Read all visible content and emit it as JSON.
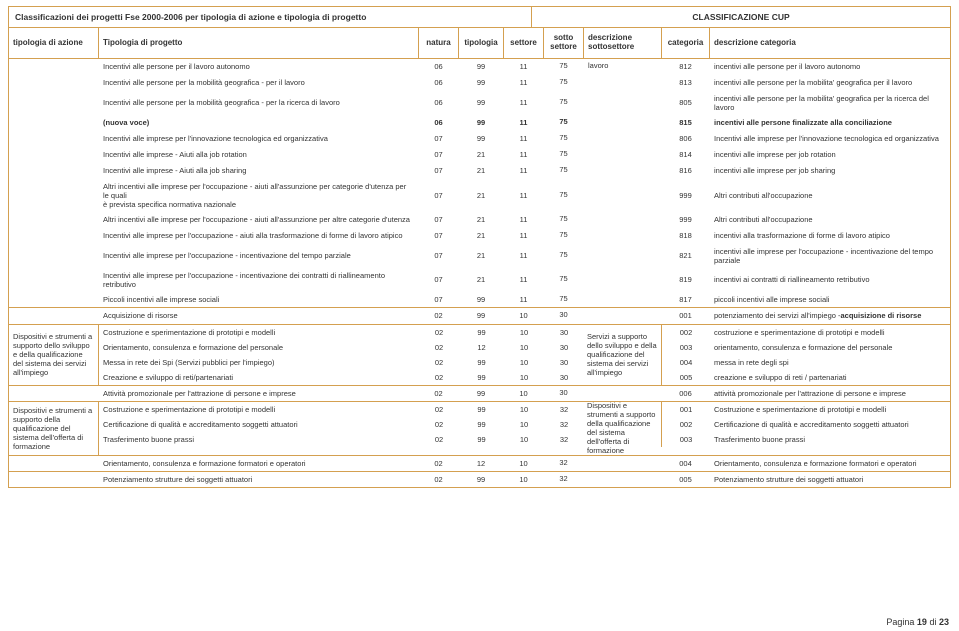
{
  "title_left": "Classificazioni dei progetti Fse 2000-2006 per tipologia di azione e tipologia di progetto",
  "title_right": "CLASSIFICAZIONE CUP",
  "headers": {
    "tip_az": "tipologia di azione",
    "tip_pr": "Tipologia di progetto",
    "natura": "natura",
    "tipologia": "tipologia",
    "settore": "settore",
    "sotto_settore": "sotto settore",
    "desc_sotto": "descrizione sottosettore",
    "categoria": "categoria",
    "desc_cat": "descrizione categoria"
  },
  "rows": [
    {
      "tip_pr": "Incentivi alle persone per il lavoro autonomo",
      "nat": "06",
      "tipol": "99",
      "set": "11",
      "sset": "75",
      "desc": "lavoro",
      "desc_top": true,
      "cat": "812",
      "dcat": "incentivi alle persone per il lavoro autonomo"
    },
    {
      "tip_pr": "Incentivi alle persone per la mobilità geografica - per il lavoro",
      "nat": "06",
      "tipol": "99",
      "set": "11",
      "sset": "75",
      "cat": "813",
      "dcat": "incentivi alle persone per la mobilita' geografica per il lavoro"
    },
    {
      "tip_pr": "Incentivi alle persone per la mobilità geografica - per la ricerca di lavoro",
      "nat": "06",
      "tipol": "99",
      "set": "11",
      "sset": "75",
      "cat": "805",
      "dcat": "incentivi alle persone per la mobilita' geografica per la ricerca del lavoro"
    },
    {
      "tip_pr": "(nuova voce)",
      "nat": "06",
      "tipol": "99",
      "set": "11",
      "sset": "75",
      "cat": "815",
      "dcat": "incentivi alle persone finalizzate alla conciliazione",
      "bold": true
    },
    {
      "tip_pr": "Incentivi alle imprese per l'innovazione tecnologica ed organizzativa",
      "nat": "07",
      "tipol": "99",
      "set": "11",
      "sset": "75",
      "cat": "806",
      "dcat": "Incentivi alle imprese per l'innovazione tecnologica ed organizzativa"
    },
    {
      "tip_pr": "Incentivi alle imprese  - Aiuti alla job rotation",
      "nat": "07",
      "tipol": "21",
      "set": "11",
      "sset": "75",
      "cat": "814",
      "dcat": "incentivi alle imprese per job rotation"
    },
    {
      "tip_pr": "Incentivi alle imprese  - Aiuti alla job sharing",
      "nat": "07",
      "tipol": "21",
      "set": "11",
      "sset": "75",
      "cat": "816",
      "dcat": "incentivi alle imprese per job sharing"
    },
    {
      "tip_pr": "Altri incentivi alle imprese per l'occupazione - aiuti all'assunzione per categorie d'utenza per le quali\n        è prevista specifica normativa nazionale",
      "nat": "07",
      "tipol": "21",
      "set": "11",
      "sset": "75",
      "cat": "999",
      "dcat": "Altri contributi all'occupazione",
      "multiline": true
    },
    {
      "tip_pr": "Altri incentivi alle imprese per l'occupazione - aiuti all'assunzione per altre categorie d'utenza",
      "nat": "07",
      "tipol": "21",
      "set": "11",
      "sset": "75",
      "cat": "999",
      "dcat": "Altri contributi all'occupazione"
    },
    {
      "tip_pr": "Incentivi alle imprese per l'occupazione - aiuti alla trasformazione di forme di lavoro atipico",
      "nat": "07",
      "tipol": "21",
      "set": "11",
      "sset": "75",
      "cat": "818",
      "dcat": "incentivi alla trasformazione di forme di lavoro atipico"
    },
    {
      "tip_pr": "Incentivi alle imprese per l'occupazione - incentivazione del tempo parziale",
      "nat": "07",
      "tipol": "21",
      "set": "11",
      "sset": "75",
      "cat": "821",
      "dcat": "incentivi alle imprese per l'occupazione - incentivazione del tempo parziale"
    },
    {
      "tip_pr": "Incentivi alle imprese per l'occupazione - incentivazione dei contratti di riallineamento retributivo",
      "nat": "07",
      "tipol": "21",
      "set": "11",
      "sset": "75",
      "cat": "819",
      "dcat": "incentivi ai contratti di riallineamento retributivo"
    },
    {
      "tip_pr": "Piccoli incentivi alle imprese sociali",
      "nat": "07",
      "tipol": "99",
      "set": "11",
      "sset": "75",
      "cat": "817",
      "dcat": "piccoli incentivi alle imprese sociali",
      "border_bottom": true
    },
    {
      "tip_pr": "Acquisizione di risorse",
      "nat": "02",
      "tipol": "99",
      "set": "10",
      "sset": "30",
      "cat": "001",
      "dcat": "potenziamento dei servizi all'impiego - acquisizione di risorse",
      "dcat_bold_suffix": true
    }
  ],
  "group_a": {
    "label": "Dispositivi e strumenti a supporto dello sviluppo e della qualificazione del sistema dei servizi all'impiego",
    "desc": "Servizi a supporto dello sviluppo e della qualificazione del sistema dei  servizi all'impiego",
    "rows": [
      {
        "tip_pr": "Costruzione e sperimentazione di prototipi e modelli",
        "nat": "02",
        "tipol": "99",
        "set": "10",
        "sset": "30",
        "cat": "002",
        "dcat": "costruzione e sperimentazione di prototipi e modelli"
      },
      {
        "tip_pr": "Orientamento, consulenza e formazione del personale",
        "nat": "02",
        "tipol": "12",
        "set": "10",
        "sset": "30",
        "cat": "003",
        "dcat": "orientamento, consulenza e formazione del personale"
      },
      {
        "tip_pr": "Messa in rete dei Spi (Servizi pubblici per l'impiego)",
        "nat": "02",
        "tipol": "99",
        "set": "10",
        "sset": "30",
        "cat": "004",
        "dcat": "messa in rete degli spi"
      },
      {
        "tip_pr": "Creazione e sviluppo di reti/partenariati",
        "nat": "02",
        "tipol": "99",
        "set": "10",
        "sset": "30",
        "cat": "005",
        "dcat": "creazione e sviluppo di reti / partenariati"
      }
    ],
    "post_row": {
      "tip_pr": "Attività promozionale per l'attrazione di persone e imprese",
      "nat": "02",
      "tipol": "99",
      "set": "10",
      "sset": "30",
      "cat": "006",
      "dcat": "attività promozionale per l'attrazione di persone e imprese"
    }
  },
  "group_b": {
    "label": "Dispositivi e strumenti a supporto della qualificazione del sistema dell'offerta di formazione",
    "desc": "Dispositivi e strumenti a supporto della qualificazione del sistema dell'offerta di formazione",
    "rows": [
      {
        "tip_pr": "Costruzione e sperimentazione di prototipi e modelli",
        "nat": "02",
        "tipol": "99",
        "set": "10",
        "sset": "32",
        "cat": "001",
        "dcat": "Costruzione e sperimentazione di prototipi e modelli"
      },
      {
        "tip_pr": "Certificazione di qualità e accreditamento soggetti attuatori",
        "nat": "02",
        "tipol": "99",
        "set": "10",
        "sset": "32",
        "cat": "002",
        "dcat": "Certificazione di qualità e accreditamento soggetti attuatori"
      },
      {
        "tip_pr": "Trasferimento buone prassi",
        "nat": "02",
        "tipol": "99",
        "set": "10",
        "sset": "32",
        "cat": "003",
        "dcat": "Trasferimento buone prassi"
      }
    ],
    "post_rows": [
      {
        "tip_pr": "Orientamento, consulenza e formazione formatori e operatori",
        "nat": "02",
        "tipol": "12",
        "set": "10",
        "sset": "32",
        "cat": "004",
        "dcat": "Orientamento, consulenza e formazione formatori e operatori"
      },
      {
        "tip_pr": "Potenziamento strutture dei soggetti attuatori",
        "nat": "02",
        "tipol": "99",
        "set": "10",
        "sset": "32",
        "cat": "005",
        "dcat": "Potenziamento strutture dei soggetti attuatori"
      }
    ]
  },
  "footer": {
    "pagina": "Pagina",
    "num": "19",
    "di": "di",
    "tot": "23"
  }
}
